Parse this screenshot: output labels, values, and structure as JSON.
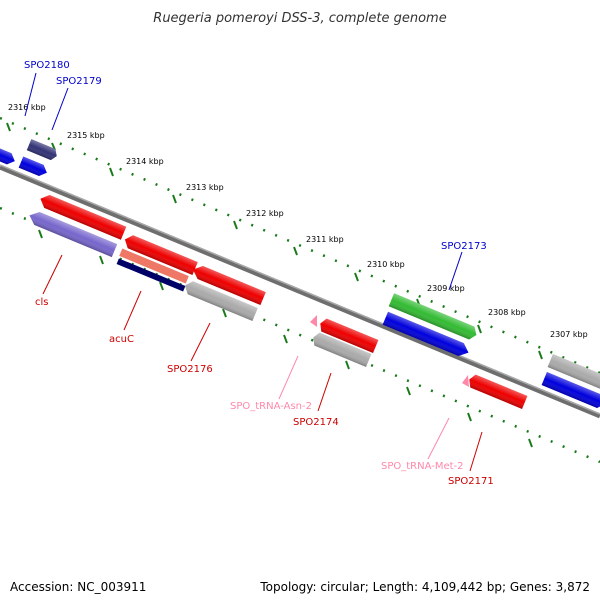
{
  "title": "Ruegeria pomeroyi DSS-3, complete genome",
  "footer": {
    "accession": "Accession: NC_003911",
    "stats": "Topology: circular; Length: 4,109,442 bp; Genes: 3,872"
  },
  "ticks": [
    "2316 kbp",
    "2315 kbp",
    "2314 kbp",
    "2313 kbp",
    "2312 kbp",
    "2311 kbp",
    "2310 kbp",
    "2309 kbp",
    "2308 kbp",
    "2307 kbp"
  ],
  "genes": [
    {
      "id": "SPO2180",
      "label": "SPO2180",
      "color": "#0000cc"
    },
    {
      "id": "SPO2179",
      "label": "SPO2179",
      "color": "#0000cc"
    },
    {
      "id": "SPO2173",
      "label": "SPO2173",
      "color": "#0000cc"
    },
    {
      "id": "cls",
      "label": "cls",
      "color": "#cc0000"
    },
    {
      "id": "acuC",
      "label": "acuC",
      "color": "#cc0000"
    },
    {
      "id": "SPO2176",
      "label": "SPO2176",
      "color": "#cc0000"
    },
    {
      "id": "SPO_tRNA-Asn-2",
      "label": "SPO_tRNA-Asn-2",
      "color": "#ff88aa"
    },
    {
      "id": "SPO2174",
      "label": "SPO2174",
      "color": "#cc0000"
    },
    {
      "id": "SPO_tRNA-Met-2",
      "label": "SPO_tRNA-Met-2",
      "color": "#ff88aa"
    },
    {
      "id": "SPO2171",
      "label": "SPO2171",
      "color": "#cc0000"
    }
  ],
  "colors": {
    "backbone": "#7a7a7a",
    "tick_dots": "#1a7a1a",
    "forward_blue": "#0000dd",
    "reverse_red": "#ee0000",
    "grey_feature": "#aaaaaa",
    "green_feature": "#33bb33",
    "purple_feature": "#7766cc",
    "navy_feature": "#000066",
    "salmon_feature": "#ee7766",
    "dark_slate_feature": "#333377",
    "trna_pink": "#ff88aa"
  }
}
